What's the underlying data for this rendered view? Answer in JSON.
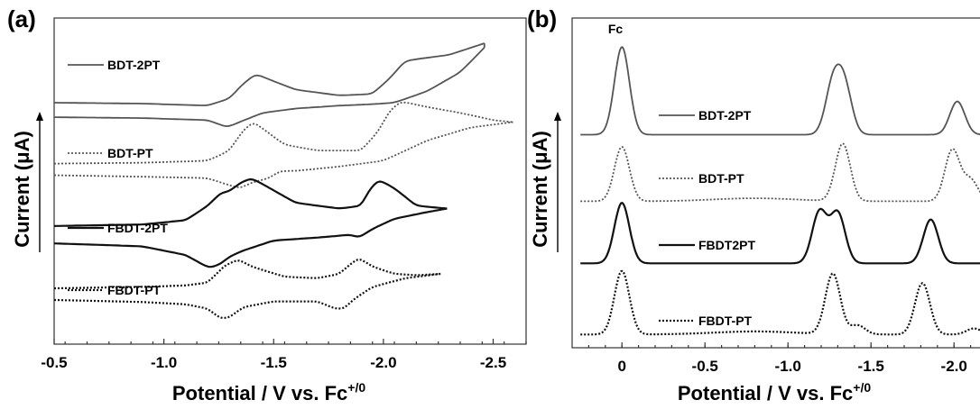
{
  "colors": {
    "BDT-2PT": "#555555",
    "BDT-PT": "#555555",
    "FBDT-2PT": "#111111",
    "FBDT-PT": "#111111"
  },
  "chart_data": [
    {
      "panel_label": "(a)",
      "type": "line",
      "subtype": "cyclic voltammogram",
      "xlabel": "Potential / V vs. Fc+/0",
      "xlabel_main": "Potential / V vs. Fc",
      "xlabel_sup": "+/0",
      "ylabel": "Current (μA)",
      "xlim": [
        -0.5,
        -2.65
      ],
      "xticks": [
        -0.5,
        -1.0,
        -1.5,
        -2.0,
        -2.5
      ],
      "xtick_labels": [
        "-0.5",
        "-1.0",
        "-1.5",
        "-2.0",
        "-2.5"
      ],
      "grid": false,
      "series": [
        {
          "name": "BDT-2PT",
          "style": "solid",
          "color": "#555555",
          "reduction_peaks": [
            -1.42,
            -2.1
          ],
          "reoxidation_peaks": [
            -1.29
          ],
          "upper_points": [
            [
              -0.5,
              0.795
            ],
            [
              -0.9,
              0.792
            ],
            [
              -1.2,
              0.785
            ],
            [
              -1.3,
              0.81
            ],
            [
              -1.36,
              0.86
            ],
            [
              -1.42,
              0.895
            ],
            [
              -1.48,
              0.875
            ],
            [
              -1.6,
              0.84
            ],
            [
              -1.8,
              0.82
            ],
            [
              -1.95,
              0.825
            ],
            [
              -2.03,
              0.88
            ],
            [
              -2.1,
              0.94
            ],
            [
              -2.2,
              0.95
            ],
            [
              -2.3,
              0.96
            ],
            [
              -2.4,
              0.985
            ],
            [
              -2.46,
              1.0
            ]
          ],
          "lower_points": [
            [
              -0.5,
              0.745
            ],
            [
              -0.9,
              0.742
            ],
            [
              -1.2,
              0.735
            ],
            [
              -1.29,
              0.71
            ],
            [
              -1.35,
              0.73
            ],
            [
              -1.45,
              0.76
            ],
            [
              -1.6,
              0.775
            ],
            [
              -1.8,
              0.785
            ],
            [
              -1.95,
              0.79
            ],
            [
              -2.05,
              0.795
            ],
            [
              -2.2,
              0.835
            ],
            [
              -2.35,
              0.9
            ],
            [
              -2.46,
              0.985
            ]
          ]
        },
        {
          "name": "BDT-PT",
          "style": "dotted",
          "color": "#555555",
          "reduction_peaks": [
            -1.41,
            -2.08
          ],
          "reoxidation_peaks": [
            -1.35,
            -1.53
          ],
          "upper_points": [
            [
              -0.5,
              0.585
            ],
            [
              -0.9,
              0.588
            ],
            [
              -1.2,
              0.595
            ],
            [
              -1.3,
              0.63
            ],
            [
              -1.36,
              0.7
            ],
            [
              -1.41,
              0.73
            ],
            [
              -1.46,
              0.7
            ],
            [
              -1.55,
              0.65
            ],
            [
              -1.7,
              0.63
            ],
            [
              -1.9,
              0.63
            ],
            [
              -1.98,
              0.7
            ],
            [
              -2.03,
              0.77
            ],
            [
              -2.08,
              0.8
            ],
            [
              -2.2,
              0.78
            ],
            [
              -2.35,
              0.76
            ],
            [
              -2.5,
              0.735
            ],
            [
              -2.59,
              0.728
            ]
          ],
          "lower_points": [
            [
              -0.5,
              0.545
            ],
            [
              -0.9,
              0.54
            ],
            [
              -1.2,
              0.535
            ],
            [
              -1.3,
              0.51
            ],
            [
              -1.35,
              0.5
            ],
            [
              -1.4,
              0.52
            ],
            [
              -1.48,
              0.535
            ],
            [
              -1.53,
              0.56
            ],
            [
              -1.6,
              0.56
            ],
            [
              -1.8,
              0.575
            ],
            [
              -2.0,
              0.595
            ],
            [
              -2.1,
              0.63
            ],
            [
              -2.2,
              0.665
            ],
            [
              -2.4,
              0.71
            ],
            [
              -2.59,
              0.728
            ]
          ]
        },
        {
          "name": "FBDT-2PT",
          "style": "solid",
          "color": "#111111",
          "reduction_peaks": [
            -1.29,
            -1.4,
            -1.97
          ],
          "reoxidation_peaks": [
            -1.21,
            -1.89
          ],
          "upper_points": [
            [
              -0.5,
              0.37
            ],
            [
              -0.9,
              0.375
            ],
            [
              -1.1,
              0.39
            ],
            [
              -1.2,
              0.44
            ],
            [
              -1.26,
              0.485
            ],
            [
              -1.3,
              0.49
            ],
            [
              -1.35,
              0.52
            ],
            [
              -1.4,
              0.535
            ],
            [
              -1.46,
              0.51
            ],
            [
              -1.6,
              0.45
            ],
            [
              -1.8,
              0.43
            ],
            [
              -1.9,
              0.44
            ],
            [
              -1.94,
              0.5
            ],
            [
              -1.98,
              0.53
            ],
            [
              -2.05,
              0.5
            ],
            [
              -2.15,
              0.44
            ],
            [
              -2.29,
              0.43
            ]
          ],
          "lower_points": [
            [
              -0.5,
              0.31
            ],
            [
              -0.9,
              0.3
            ],
            [
              -1.1,
              0.27
            ],
            [
              -1.17,
              0.24
            ],
            [
              -1.21,
              0.225
            ],
            [
              -1.26,
              0.24
            ],
            [
              -1.3,
              0.265
            ],
            [
              -1.36,
              0.285
            ],
            [
              -1.5,
              0.32
            ],
            [
              -1.7,
              0.33
            ],
            [
              -1.85,
              0.34
            ],
            [
              -1.89,
              0.33
            ],
            [
              -1.95,
              0.36
            ],
            [
              -2.05,
              0.395
            ],
            [
              -2.2,
              0.418
            ],
            [
              -2.29,
              0.43
            ]
          ]
        },
        {
          "name": "FBDT-PT",
          "style": "dotted",
          "color": "#111111",
          "reduction_peaks": [
            -1.34,
            -1.89
          ],
          "reoxidation_peaks": [
            -1.27,
            -1.81
          ],
          "upper_points": [
            [
              -0.5,
              0.155
            ],
            [
              -0.9,
              0.16
            ],
            [
              -1.1,
              0.165
            ],
            [
              -1.2,
              0.175
            ],
            [
              -1.28,
              0.235
            ],
            [
              -1.34,
              0.255
            ],
            [
              -1.4,
              0.23
            ],
            [
              -1.55,
              0.195
            ],
            [
              -1.7,
              0.19
            ],
            [
              -1.8,
              0.205
            ],
            [
              -1.86,
              0.245
            ],
            [
              -1.89,
              0.26
            ],
            [
              -1.95,
              0.23
            ],
            [
              -2.05,
              0.205
            ],
            [
              -2.15,
              0.2
            ],
            [
              -2.26,
              0.205
            ]
          ],
          "lower_points": [
            [
              -0.5,
              0.115
            ],
            [
              -0.9,
              0.108
            ],
            [
              -1.1,
              0.1
            ],
            [
              -1.2,
              0.085
            ],
            [
              -1.26,
              0.05
            ],
            [
              -1.3,
              0.055
            ],
            [
              -1.36,
              0.09
            ],
            [
              -1.5,
              0.11
            ],
            [
              -1.7,
              0.11
            ],
            [
              -1.78,
              0.085
            ],
            [
              -1.82,
              0.085
            ],
            [
              -1.87,
              0.12
            ],
            [
              -1.95,
              0.16
            ],
            [
              -2.1,
              0.19
            ],
            [
              -2.26,
              0.205
            ]
          ]
        }
      ]
    },
    {
      "panel_label": "(b)",
      "type": "line",
      "subtype": "differential pulse voltammogram",
      "xlabel": "Potential / V vs. Fc+/0",
      "xlabel_main": "Potential / V vs. Fc",
      "xlabel_sup": "+/0",
      "ylabel": "Current (μA)",
      "xlim": [
        0.3,
        -2.2
      ],
      "xticks": [
        0.0,
        -0.5,
        -1.0,
        -1.5,
        -2.0
      ],
      "xtick_labels": [
        "0",
        "-0.5",
        "-1.0",
        "-1.5",
        "-2.0"
      ],
      "annotation": "Fc",
      "grid": false,
      "series": [
        {
          "name": "BDT-2PT",
          "style": "solid",
          "color": "#555555",
          "baseline": 0.68,
          "peaks": [
            [
              0.0,
              0.29
            ],
            [
              -1.27,
              0.16
            ],
            [
              -1.34,
              0.155
            ],
            [
              -2.02,
              0.11
            ]
          ]
        },
        {
          "name": "BDT-PT",
          "style": "dotted",
          "color": "#555555",
          "baseline": 0.46,
          "peaks": [
            [
              0.0,
              0.18
            ],
            [
              -0.8,
              0.01
            ],
            [
              -1.33,
              0.19
            ],
            [
              -1.99,
              0.17
            ],
            [
              -2.1,
              0.07
            ]
          ]
        },
        {
          "name": "FBDT2PT",
          "style": "solid",
          "color": "#111111",
          "baseline": 0.255,
          "peaks": [
            [
              0.0,
              0.2
            ],
            [
              -1.19,
              0.17
            ],
            [
              -1.3,
              0.165
            ],
            [
              -1.86,
              0.145
            ]
          ]
        },
        {
          "name": "FBDT-PT",
          "style": "dotted",
          "color": "#111111",
          "baseline": 0.02,
          "peaks": [
            [
              0.0,
              0.21
            ],
            [
              -0.8,
              0.01
            ],
            [
              -1.27,
              0.2
            ],
            [
              -1.42,
              0.03
            ],
            [
              -1.81,
              0.17
            ],
            [
              -2.12,
              0.02
            ]
          ]
        }
      ]
    }
  ]
}
